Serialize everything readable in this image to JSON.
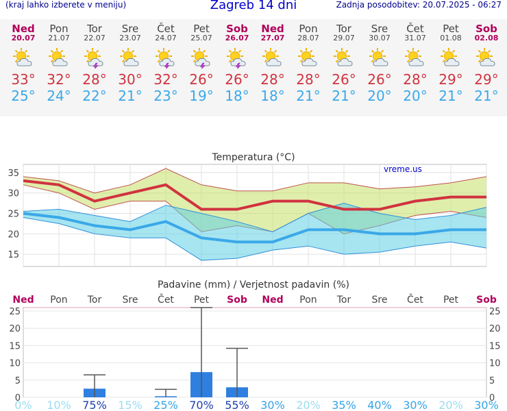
{
  "header": {
    "hint": "(kraj lahko izberete v meniju)",
    "title": "Zagreb 14 dni",
    "updated": "Zadnja posodobitev: 20.07.2025 - 06:27"
  },
  "colors": {
    "weekend": "#b0005a",
    "weekday": "#444444",
    "max_line": "#d0333f",
    "min_line": "#3aa8e8",
    "bar": "#2f7fe0"
  },
  "days": [
    {
      "name": "Ned",
      "date": "20.07",
      "weekend": true,
      "icon": "sun-cloud-icon",
      "max": "33°",
      "min": "25°"
    },
    {
      "name": "Pon",
      "date": "21.07",
      "weekend": false,
      "icon": "sun-cloud-icon",
      "max": "32°",
      "min": "24°"
    },
    {
      "name": "Tor",
      "date": "22.07",
      "weekend": false,
      "icon": "sun-cloud-storm-icon",
      "max": "28°",
      "min": "22°"
    },
    {
      "name": "Sre",
      "date": "23.07",
      "weekend": false,
      "icon": "sun-cloud-icon",
      "max": "30°",
      "min": "21°"
    },
    {
      "name": "Čet",
      "date": "24.07",
      "weekend": false,
      "icon": "sun-cloud-storm-icon",
      "max": "32°",
      "min": "23°"
    },
    {
      "name": "Pet",
      "date": "25.07",
      "weekend": false,
      "icon": "sun-cloud-storm-icon",
      "max": "26°",
      "min": "19°"
    },
    {
      "name": "Sob",
      "date": "26.07",
      "weekend": true,
      "icon": "sun-cloud-storm-icon",
      "max": "26°",
      "min": "18°"
    },
    {
      "name": "Ned",
      "date": "27.07",
      "weekend": true,
      "icon": "sun-cloud-icon",
      "max": "28°",
      "min": "18°"
    },
    {
      "name": "Pon",
      "date": "28.07",
      "weekend": false,
      "icon": "sun-cloud-icon",
      "max": "28°",
      "min": "21°"
    },
    {
      "name": "Tor",
      "date": "29.07",
      "weekend": false,
      "icon": "sun-cloud-icon",
      "max": "26°",
      "min": "21°"
    },
    {
      "name": "Sre",
      "date": "30.07",
      "weekend": false,
      "icon": "sun-cloud-icon",
      "max": "26°",
      "min": "20°"
    },
    {
      "name": "Čet",
      "date": "31.07",
      "weekend": false,
      "icon": "sun-cloud-icon",
      "max": "28°",
      "min": "20°"
    },
    {
      "name": "Pet",
      "date": "01.08",
      "weekend": false,
      "icon": "sun-cloud-icon",
      "max": "29°",
      "min": "21°"
    },
    {
      "name": "Sob",
      "date": "02.08",
      "weekend": true,
      "icon": "sun-cloud-icon",
      "max": "29°",
      "min": "21°"
    }
  ],
  "chart_data": [
    {
      "type": "line",
      "title": "Temperatura (°C)",
      "watermark": "vreme.us",
      "categories": [
        "20.07",
        "21.07",
        "22.07",
        "23.07",
        "24.07",
        "25.07",
        "26.07",
        "27.07",
        "28.07",
        "29.07",
        "30.07",
        "31.07",
        "01.08",
        "02.08"
      ],
      "ylim": [
        12,
        37
      ],
      "yticks": [
        15,
        20,
        25,
        30,
        35
      ],
      "grid": true,
      "series": [
        {
          "values": [
            33,
            32,
            28,
            30,
            32,
            26,
            26,
            28,
            28,
            26,
            26,
            28,
            29,
            29
          ]
        },
        {
          "values": [
            25,
            24,
            22,
            21,
            23,
            19,
            18,
            18,
            21,
            21,
            20,
            20,
            21,
            21
          ]
        }
      ],
      "max_band_upper": [
        34,
        33,
        30,
        32,
        36,
        32,
        30.5,
        30.5,
        32.5,
        32.5,
        31,
        31.5,
        32.5,
        34
      ],
      "max_band_lower": [
        32,
        30,
        26,
        28,
        28,
        20.5,
        22,
        20.5,
        25,
        20,
        22,
        24.5,
        25.5,
        24
      ],
      "min_band_upper": [
        25.5,
        26,
        24.5,
        23,
        27,
        25,
        23,
        20.5,
        25,
        27.5,
        25,
        23.5,
        24.5,
        26.5
      ],
      "min_band_lower": [
        24,
        22.5,
        20,
        19,
        19,
        13.5,
        14,
        16,
        17,
        15,
        15.5,
        17,
        18,
        16.5
      ]
    },
    {
      "type": "bar",
      "title": "Padavine (mm) / Verjetnost padavin (%)",
      "categories": [
        "Ned",
        "Pon",
        "Tor",
        "Sre",
        "Čet",
        "Pet",
        "Sob",
        "Ned",
        "Pon",
        "Tor",
        "Sre",
        "Čet",
        "Pet",
        "Sob"
      ],
      "weekend": [
        true,
        false,
        false,
        false,
        false,
        false,
        true,
        true,
        false,
        false,
        false,
        false,
        false,
        true
      ],
      "ylim": [
        0,
        26
      ],
      "yticks": [
        0,
        5,
        10,
        15,
        20,
        25
      ],
      "grid": true,
      "values": [
        0,
        0,
        2.5,
        0,
        0.3,
        7.3,
        2.9,
        0,
        0,
        0,
        0,
        0,
        0,
        0
      ],
      "error_max": [
        0,
        0,
        6.5,
        0,
        2.3,
        26,
        14.2,
        0,
        0,
        0,
        0,
        0,
        0,
        0
      ],
      "probability": [
        "0%",
        "10%",
        "75%",
        "15%",
        "25%",
        "70%",
        "55%",
        "30%",
        "20%",
        "35%",
        "40%",
        "30%",
        "20%",
        "30%"
      ]
    }
  ]
}
